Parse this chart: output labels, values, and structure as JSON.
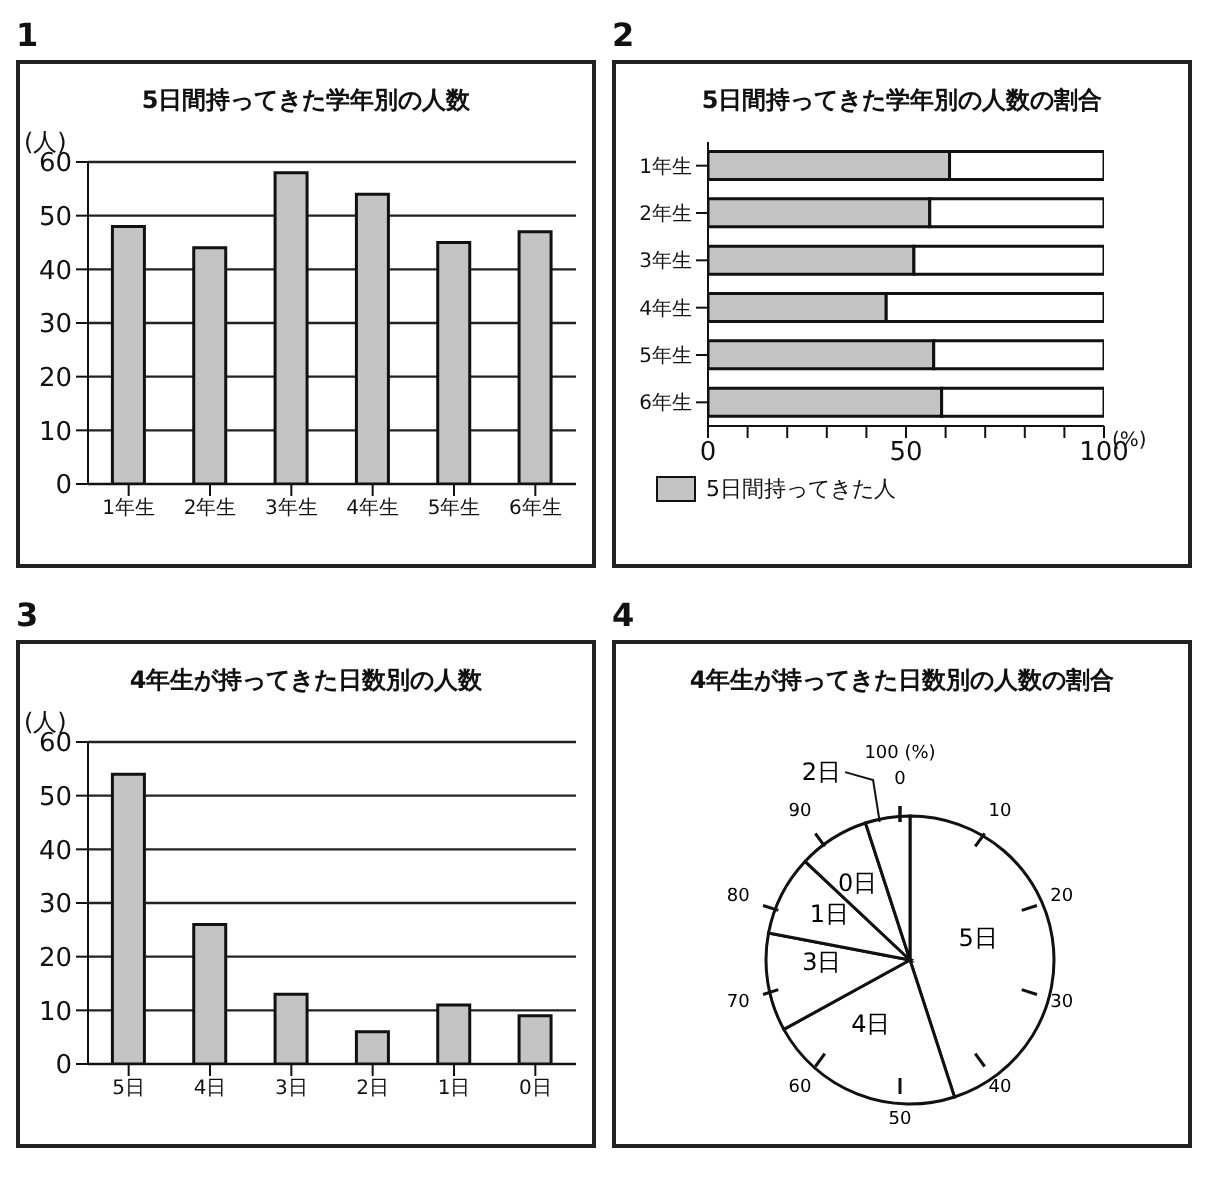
{
  "chart_data": [
    {
      "type": "bar",
      "title": "5日間持ってきた学年別の人数",
      "ylabel": "(人)",
      "annotations": [
        "1"
      ],
      "categories": [
        "1年生",
        "2年生",
        "3年生",
        "4年生",
        "5年生",
        "6年生"
      ],
      "values": [
        48,
        44,
        58,
        54,
        45,
        47
      ],
      "color": "#c4c4c4",
      "ylim": [
        0,
        60
      ],
      "yticks": [
        0,
        10,
        20,
        30,
        40,
        50,
        60
      ],
      "grid": "y"
    },
    {
      "type": "bar",
      "orientation": "horizontal",
      "stacked": true,
      "title": "5日間持ってきた学年別の人数の割合",
      "xlabel": "(%)",
      "annotations": [
        "2"
      ],
      "categories": [
        "1年生",
        "2年生",
        "3年生",
        "4年生",
        "5年生",
        "6年生"
      ],
      "series": [
        {
          "name": "5日間持ってきた人",
          "color": "#c4c4c4",
          "values": [
            61,
            56,
            52,
            45,
            57,
            59
          ]
        },
        {
          "color": "#ffffff",
          "values": [
            39,
            44,
            48,
            55,
            43,
            41
          ]
        }
      ],
      "xlim": [
        0,
        100
      ],
      "xticks": [
        0,
        {
          "value": 10,
          "label": null
        },
        {
          "value": 20,
          "label": null
        },
        {
          "value": 30,
          "label": null
        },
        {
          "value": 40,
          "label": null
        },
        50,
        {
          "value": 60,
          "label": null
        },
        {
          "value": 70,
          "label": null
        },
        {
          "value": 80,
          "label": null
        },
        {
          "value": 90,
          "label": null
        },
        100
      ],
      "legend": "bottom"
    },
    {
      "type": "bar",
      "title": "4年生が持ってきた日数別の人数",
      "ylabel": "(人)",
      "annotations": [
        "3"
      ],
      "categories": [
        "5日",
        "4日",
        "3日",
        "2日",
        "1日",
        "0日"
      ],
      "values": [
        54,
        26,
        13,
        6,
        11,
        9
      ],
      "color": "#c4c4c4",
      "ylim": [
        0,
        60
      ],
      "yticks": [
        0,
        10,
        20,
        30,
        40,
        50,
        60
      ],
      "grid": "y"
    },
    {
      "type": "pie",
      "title": "4年生が持ってきた日数別の人数の割合",
      "annotations": [
        "4",
        "0",
        "10",
        "20",
        "30",
        "40",
        "50",
        "60",
        "70",
        "80",
        "90",
        "100 (%)"
      ],
      "categories": [
        "5日",
        "4日",
        "3日",
        "1日",
        "0日",
        "2日"
      ],
      "values": [
        45,
        22,
        11,
        9,
        8,
        5
      ],
      "colors": [
        "#ffffff",
        "#ffffff",
        "#ffffff",
        "#ffffff",
        "#ffffff",
        "#ffffff"
      ]
    }
  ]
}
